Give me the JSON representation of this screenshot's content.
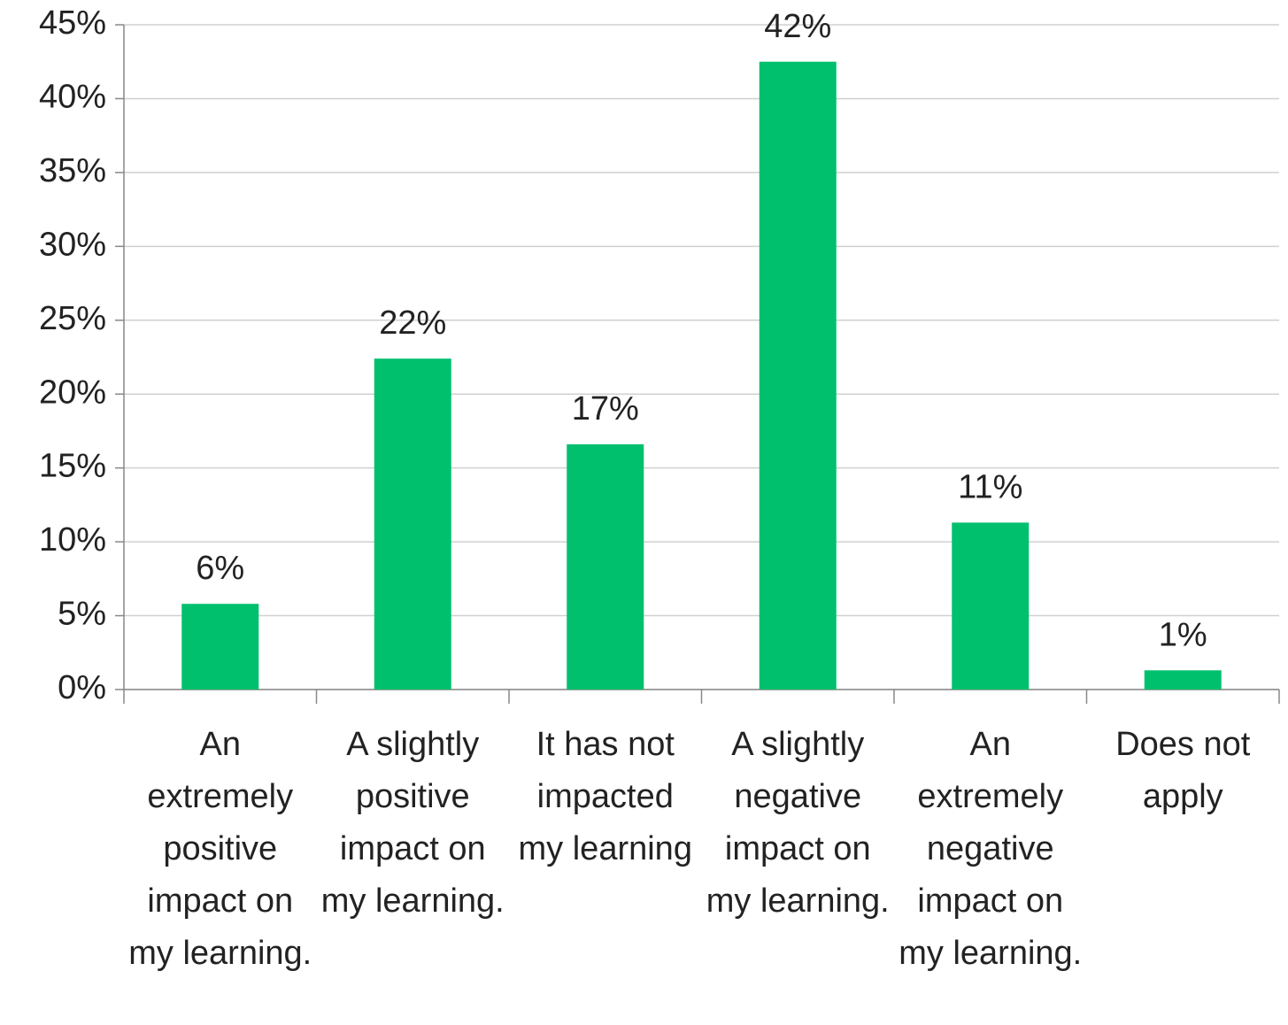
{
  "chart_data": {
    "type": "bar",
    "categories": [
      "An extremely positive impact on my learning.",
      "A slightly positive impact on my learning.",
      "It has not impacted my learning",
      "A slightly negative impact on my learning.",
      "An extremely negative impact on my learning.",
      "Does not apply"
    ],
    "values": [
      5.8,
      22.4,
      16.6,
      42.5,
      11.3,
      1.3
    ],
    "value_labels": [
      "6%",
      "22%",
      "17%",
      "42%",
      "11%",
      "1%"
    ],
    "color": "#00c06e",
    "ylim": [
      0,
      45
    ],
    "yticks": [
      {
        "value": 0,
        "label": "0%"
      },
      {
        "value": 5,
        "label": "5%"
      },
      {
        "value": 10,
        "label": "10%"
      },
      {
        "value": 15,
        "label": "15%"
      },
      {
        "value": 20,
        "label": "20%"
      },
      {
        "value": 25,
        "label": "25%"
      },
      {
        "value": 30,
        "label": "30%"
      },
      {
        "value": 35,
        "label": "35%"
      },
      {
        "value": 40,
        "label": "40%"
      },
      {
        "value": 45,
        "label": "45%"
      }
    ],
    "grid": true
  }
}
